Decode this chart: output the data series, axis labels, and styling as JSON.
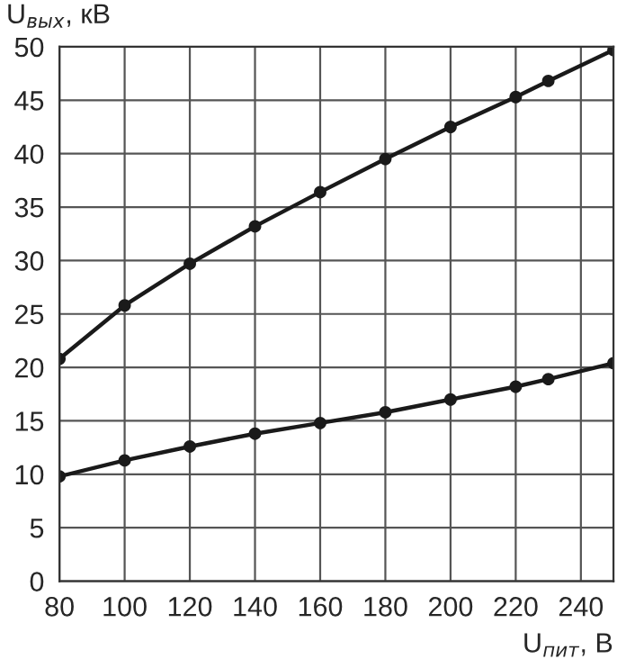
{
  "chart_data": {
    "type": "line",
    "xlabel": "U$_{пит}$, В",
    "ylabel": "U$_{вых}$, кВ",
    "xlim": [
      80,
      250
    ],
    "xticks": [
      80,
      100,
      120,
      140,
      160,
      180,
      200,
      220,
      240
    ],
    "ylim": [
      0,
      50
    ],
    "yticks": [
      0,
      5,
      10,
      15,
      20,
      25,
      30,
      35,
      40,
      45,
      50
    ],
    "grid": true,
    "marker": "circle",
    "line_style": "solid",
    "series": [
      {
        "color": "#1a1a1a",
        "x": [
          80,
          100,
          120,
          140,
          160,
          180,
          200,
          220,
          230,
          250
        ],
        "values": [
          20.8,
          25.8,
          29.7,
          33.2,
          36.4,
          39.5,
          42.5,
          45.3,
          46.8,
          49.7
        ]
      },
      {
        "color": "#1a1a1a",
        "x": [
          80,
          100,
          120,
          140,
          160,
          180,
          200,
          220,
          230,
          250
        ],
        "values": [
          9.8,
          11.3,
          12.6,
          13.8,
          14.8,
          15.8,
          17.0,
          18.2,
          18.9,
          20.4
        ]
      }
    ]
  }
}
